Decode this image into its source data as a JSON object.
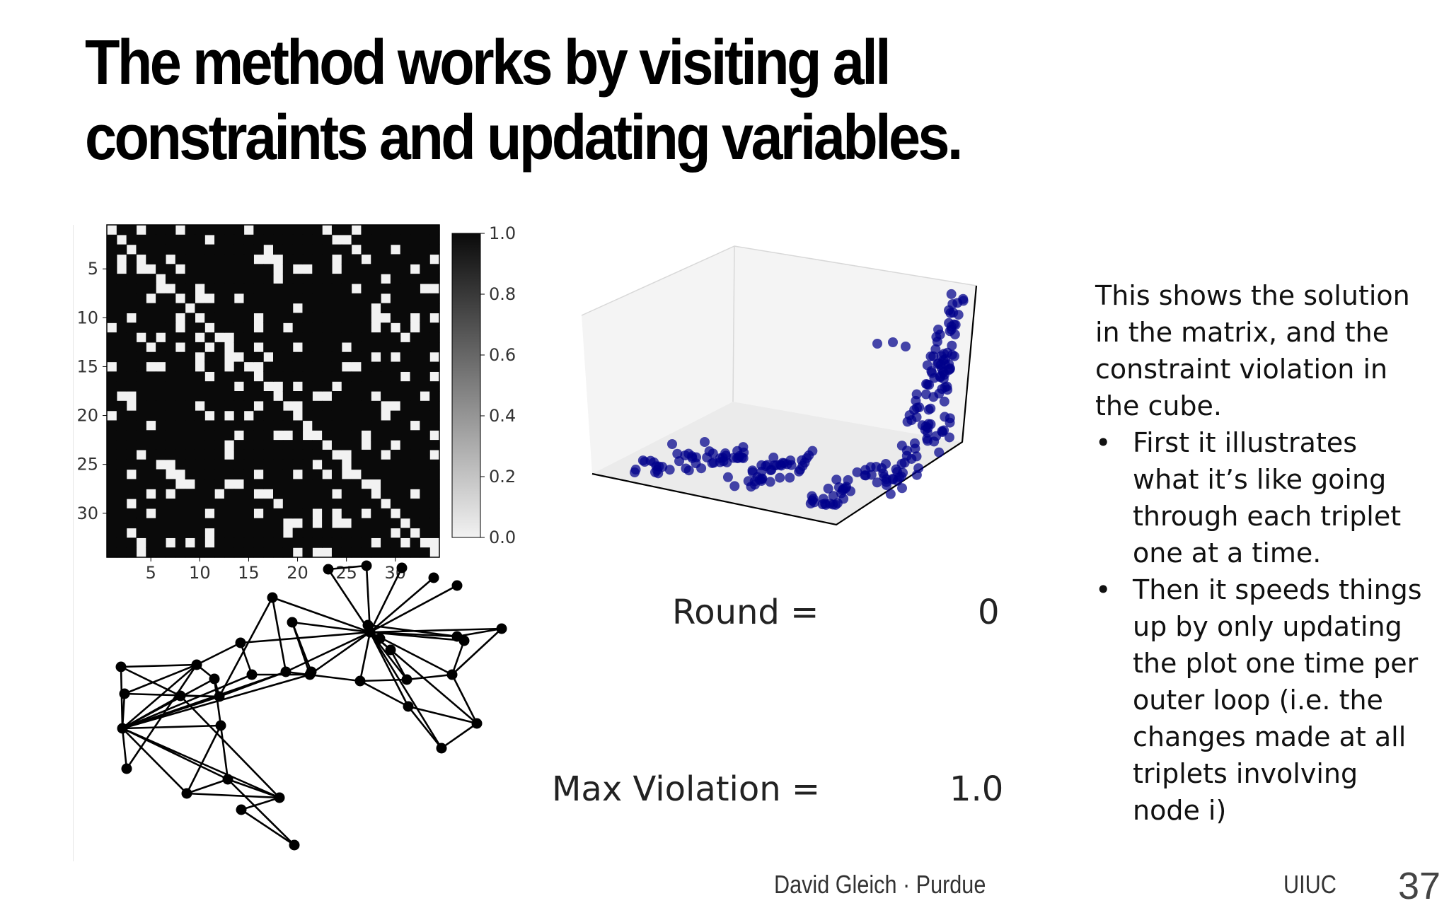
{
  "slide": {
    "title": "The method works by visiting all constraints and updating variables.",
    "footer_center": "David Gleich · Purdue",
    "footer_right": "UIUC",
    "page_number": "37"
  },
  "matrix": {
    "size": 34,
    "x_ticks": [
      "5",
      "10",
      "15",
      "20",
      "25",
      "30"
    ],
    "y_ticks": [
      "5",
      "10",
      "15",
      "20",
      "25",
      "30"
    ],
    "colorbar_ticks": [
      "0.0",
      "0.2",
      "0.4",
      "0.6",
      "0.8",
      "1.0"
    ],
    "colormap": [
      "#f2f2f2",
      "#0a0a0a"
    ]
  },
  "cube": {
    "point_color": "#00008b"
  },
  "graph": {
    "node_color": "#000000",
    "edge_color": "#000000"
  },
  "counters": {
    "round_label": "Round =",
    "round_value": "0",
    "violation_label": "Max Violation =",
    "violation_value": "1.0"
  },
  "description": {
    "intro": "This shows the solution in the matrix, and the constraint violation in the cube.",
    "bullets": [
      "First it illustrates what it’s like going through each triplet one at a time.",
      "Then it speeds things up by only updating the plot one time per outer loop (i.e. the changes made at all triplets involving node i)"
    ]
  }
}
